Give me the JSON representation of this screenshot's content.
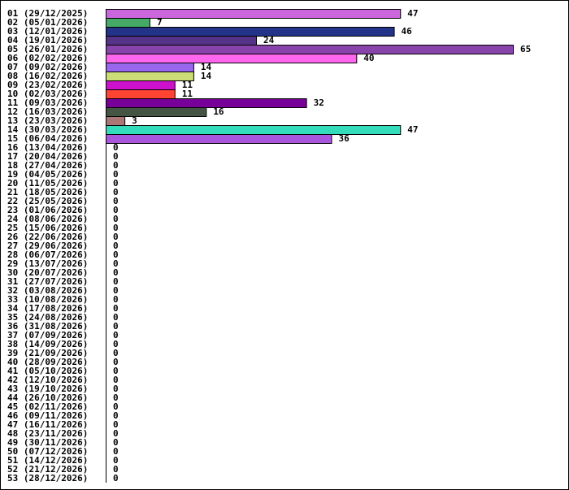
{
  "chart_data": {
    "type": "bar",
    "orientation": "horizontal",
    "categories": [
      "01 (29/12/2025)",
      "02 (05/01/2026)",
      "03 (12/01/2026)",
      "04 (19/01/2026)",
      "05 (26/01/2026)",
      "06 (02/02/2026)",
      "07 (09/02/2026)",
      "08 (16/02/2026)",
      "09 (23/02/2026)",
      "10 (02/03/2026)",
      "11 (09/03/2026)",
      "12 (16/03/2026)",
      "13 (23/03/2026)",
      "14 (30/03/2026)",
      "15 (06/04/2026)",
      "16 (13/04/2026)",
      "17 (20/04/2026)",
      "18 (27/04/2026)",
      "19 (04/05/2026)",
      "20 (11/05/2026)",
      "21 (18/05/2026)",
      "22 (25/05/2026)",
      "23 (01/06/2026)",
      "24 (08/06/2026)",
      "25 (15/06/2026)",
      "26 (22/06/2026)",
      "27 (29/06/2026)",
      "28 (06/07/2026)",
      "29 (13/07/2026)",
      "30 (20/07/2026)",
      "31 (27/07/2026)",
      "32 (03/08/2026)",
      "33 (10/08/2026)",
      "34 (17/08/2026)",
      "35 (24/08/2026)",
      "36 (31/08/2026)",
      "37 (07/09/2026)",
      "38 (14/09/2026)",
      "39 (21/09/2026)",
      "40 (28/09/2026)",
      "41 (05/10/2026)",
      "42 (12/10/2026)",
      "43 (19/10/2026)",
      "44 (26/10/2026)",
      "45 (02/11/2026)",
      "46 (09/11/2026)",
      "47 (16/11/2026)",
      "48 (23/11/2026)",
      "49 (30/11/2026)",
      "50 (07/12/2026)",
      "51 (14/12/2026)",
      "52 (21/12/2026)",
      "53 (28/12/2026)"
    ],
    "values": [
      47,
      7,
      46,
      24,
      65,
      40,
      14,
      14,
      11,
      11,
      32,
      16,
      3,
      47,
      36,
      0,
      0,
      0,
      0,
      0,
      0,
      0,
      0,
      0,
      0,
      0,
      0,
      0,
      0,
      0,
      0,
      0,
      0,
      0,
      0,
      0,
      0,
      0,
      0,
      0,
      0,
      0,
      0,
      0,
      0,
      0,
      0,
      0,
      0,
      0,
      0,
      0,
      0
    ],
    "colors": [
      "#cc66dd",
      "#44aa66",
      "#223388",
      "#553388",
      "#8844aa",
      "#ff66ee",
      "#9966ee",
      "#ccdd77",
      "#cc11cc",
      "#ff4433",
      "#770099",
      "#445544",
      "#aa7777",
      "#33ddbb",
      "#aa55dd"
    ],
    "xlim": [
      0,
      65
    ],
    "grid": false,
    "title": "",
    "xlabel": "",
    "ylabel": ""
  }
}
